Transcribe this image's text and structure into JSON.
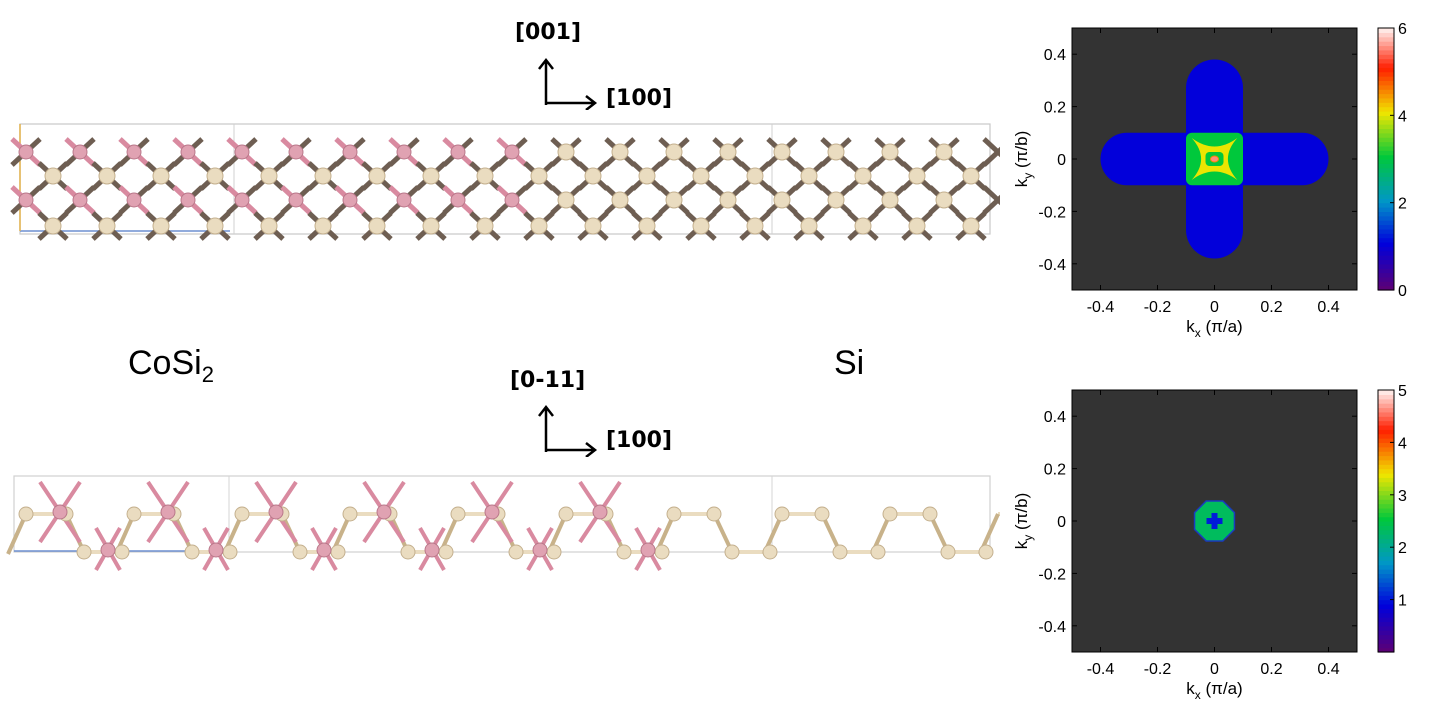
{
  "structure_top": {
    "dir_up": "[001]",
    "dir_right": "[100]"
  },
  "structure_bottom": {
    "dir_up": "[0-11]",
    "dir_right": "[100]"
  },
  "labels": {
    "left_material": "CoSi",
    "left_material_sub": "2",
    "right_material": "Si"
  },
  "colors": {
    "co_atom": "#e0a2b2",
    "si_atom": "#eadcc0",
    "bond_dark": "#6e5e52",
    "bond_pink": "#d98aa0",
    "map_background": "#333333"
  },
  "chart_data": [
    {
      "type": "heatmap",
      "xlabel": "k_x (π/a)",
      "ylabel": "k_y (π/b)",
      "xlim": [
        -0.5,
        0.5
      ],
      "ylim": [
        -0.5,
        0.5
      ],
      "xticks": [
        "-0.4",
        "-0.2",
        "0",
        "0.2",
        "0.4"
      ],
      "yticks": [
        "0.4",
        "0.2",
        "0",
        "-0.2",
        "-0.4"
      ],
      "colorbar_range": [
        0,
        6
      ],
      "colorbar_ticks": [
        "6",
        "4",
        "2",
        "0"
      ],
      "description_regions": [
        {
          "shape": "cross-arm-vertical",
          "value": 1,
          "extent_kx": [
            -0.1,
            0.1
          ],
          "extent_ky": [
            -0.38,
            0.38
          ]
        },
        {
          "shape": "cross-arm-horizontal",
          "value": 1,
          "extent_kx": [
            -0.4,
            0.4
          ],
          "extent_ky": [
            -0.1,
            0.1
          ]
        },
        {
          "shape": "center-square",
          "value": 3,
          "extent_kx": [
            -0.1,
            0.1
          ],
          "extent_ky": [
            -0.1,
            0.1
          ]
        },
        {
          "shape": "center-inner",
          "value": 4,
          "extent_kx": [
            -0.08,
            0.08
          ],
          "extent_ky": [
            -0.08,
            0.08
          ]
        },
        {
          "shape": "center-dot",
          "value": 5.5,
          "extent_kx": [
            -0.01,
            0.01
          ],
          "extent_ky": [
            -0.01,
            0.01
          ]
        }
      ]
    },
    {
      "type": "heatmap",
      "xlabel": "k_x (π/a)",
      "ylabel": "k_y (π/b)",
      "xlim": [
        -0.5,
        0.5
      ],
      "ylim": [
        -0.5,
        0.5
      ],
      "xticks": [
        "-0.4",
        "-0.2",
        "0",
        "0.2",
        "0.4"
      ],
      "yticks": [
        "0.4",
        "0.2",
        "0",
        "-0.2",
        "-0.4"
      ],
      "colorbar_range": [
        0,
        5
      ],
      "colorbar_ticks": [
        "5",
        "4",
        "3",
        "2",
        "1"
      ],
      "description_regions": [
        {
          "shape": "octagon",
          "value": 2.3,
          "extent_kx": [
            -0.07,
            0.07
          ],
          "extent_ky": [
            -0.07,
            0.07
          ]
        },
        {
          "shape": "center-cross",
          "value": 1,
          "extent_kx": [
            -0.03,
            0.03
          ],
          "extent_ky": [
            -0.03,
            0.03
          ]
        }
      ]
    }
  ]
}
